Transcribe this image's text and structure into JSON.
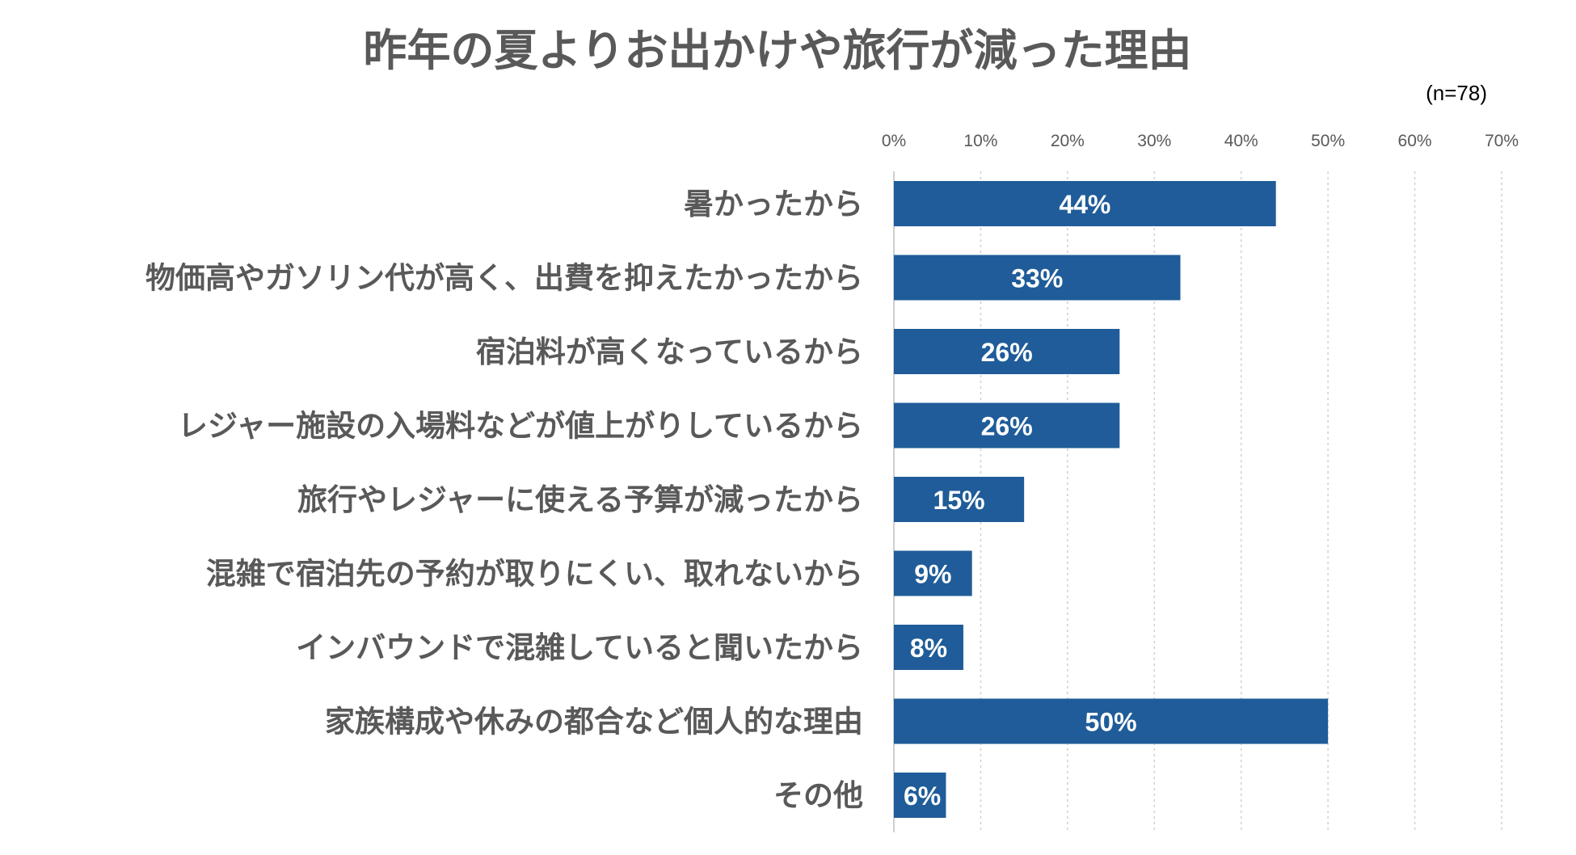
{
  "chart_data": {
    "type": "bar",
    "orientation": "horizontal",
    "title": "昨年の夏よりお出かけや旅行が減った理由",
    "sample_note": "(n=78)",
    "categories": [
      "暑かったから",
      "物価高やガソリン代が高く、出費を抑えたかったから",
      "宿泊料が高くなっているから",
      "レジャー施設の入場料などが値上がりしているから",
      "旅行やレジャーに使える予算が減ったから",
      "混雑で宿泊先の予約が取りにくい、取れないから",
      "インバウンドで混雑していると聞いたから",
      "家族構成や休みの都合など個人的な理由",
      "その他"
    ],
    "values": [
      44,
      33,
      26,
      26,
      15,
      9,
      8,
      50,
      6
    ],
    "data_labels": [
      "44%",
      "33%",
      "26%",
      "26%",
      "15%",
      "9%",
      "8%",
      "50%",
      "6%"
    ],
    "xlim": [
      0,
      70
    ],
    "x_ticks": [
      0,
      10,
      20,
      30,
      40,
      50,
      60,
      70
    ],
    "x_tick_labels": [
      "0%",
      "10%",
      "20%",
      "30%",
      "40%",
      "50%",
      "60%",
      "70%"
    ],
    "xaxis_position": "top",
    "grid": true,
    "bar_color": "#1f5c99",
    "label_color": "#595959"
  }
}
